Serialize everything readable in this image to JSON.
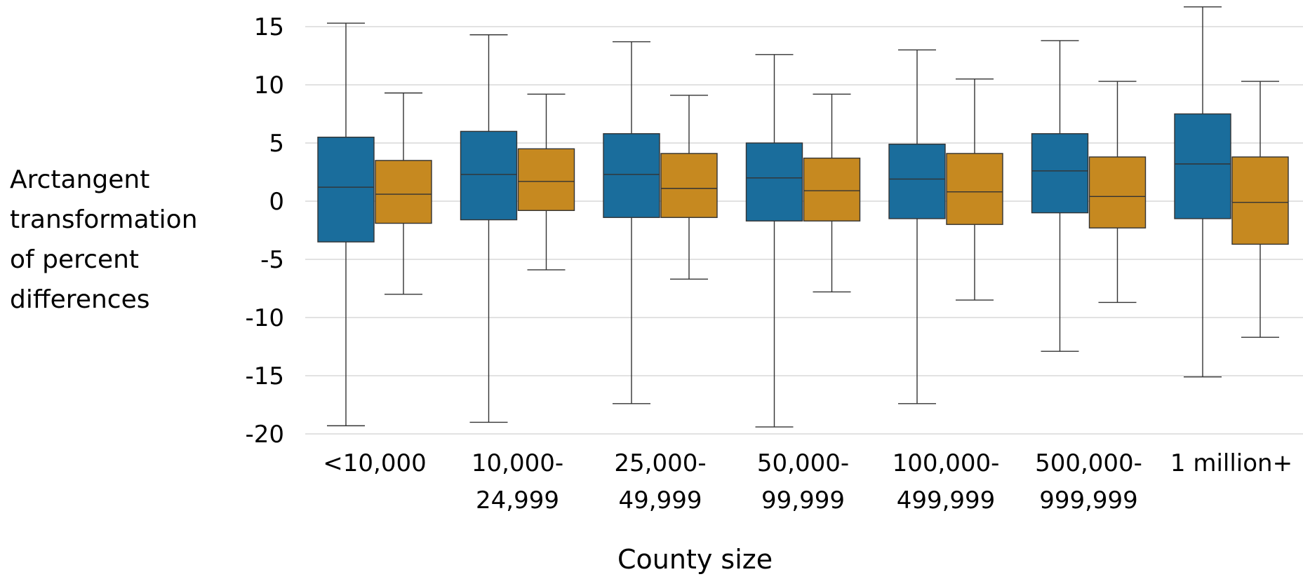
{
  "chart_data": {
    "type": "boxplot",
    "xlabel": "County size",
    "ylabel": "Arctangent transformation of percent differences",
    "ylim": [
      -20,
      16.5
    ],
    "yticks": [
      15,
      10,
      5,
      0,
      -5,
      -10,
      -15,
      -20
    ],
    "grid": true,
    "categories": [
      [
        "<10,000"
      ],
      [
        "10,000-",
        "24,999"
      ],
      [
        "25,000-",
        "49,999"
      ],
      [
        "50,000-",
        "99,999"
      ],
      [
        "100,000-",
        "499,999"
      ],
      [
        "500,000-",
        "999,999"
      ],
      [
        "1 million+"
      ]
    ],
    "series": [
      {
        "color": "#1a6d9c",
        "boxes": [
          {
            "min": -19.3,
            "q1": -3.5,
            "median": 1.2,
            "q3": 5.5,
            "max": 15.3
          },
          {
            "min": -19.0,
            "q1": -1.6,
            "median": 2.3,
            "q3": 6.0,
            "max": 14.3
          },
          {
            "min": -17.4,
            "q1": -1.4,
            "median": 2.3,
            "q3": 5.8,
            "max": 13.7
          },
          {
            "min": -19.4,
            "q1": -1.7,
            "median": 2.0,
            "q3": 5.0,
            "max": 12.6
          },
          {
            "min": -17.4,
            "q1": -1.5,
            "median": 1.9,
            "q3": 4.9,
            "max": 13.0
          },
          {
            "min": -12.9,
            "q1": -1.0,
            "median": 2.6,
            "q3": 5.8,
            "max": 13.8
          },
          {
            "min": -15.1,
            "q1": -1.5,
            "median": 3.2,
            "q3": 7.5,
            "max": 16.7
          }
        ]
      },
      {
        "color": "#c68920",
        "boxes": [
          {
            "min": -8.0,
            "q1": -1.9,
            "median": 0.6,
            "q3": 3.5,
            "max": 9.3
          },
          {
            "min": -5.9,
            "q1": -0.8,
            "median": 1.7,
            "q3": 4.5,
            "max": 9.2
          },
          {
            "min": -6.7,
            "q1": -1.4,
            "median": 1.1,
            "q3": 4.1,
            "max": 9.1
          },
          {
            "min": -7.8,
            "q1": -1.7,
            "median": 0.9,
            "q3": 3.7,
            "max": 9.2
          },
          {
            "min": -8.5,
            "q1": -2.0,
            "median": 0.8,
            "q3": 4.1,
            "max": 10.5
          },
          {
            "min": -8.7,
            "q1": -2.3,
            "median": 0.4,
            "q3": 3.8,
            "max": 10.3
          },
          {
            "min": -11.7,
            "q1": -3.7,
            "median": -0.1,
            "q3": 3.8,
            "max": 10.3
          }
        ]
      }
    ]
  }
}
